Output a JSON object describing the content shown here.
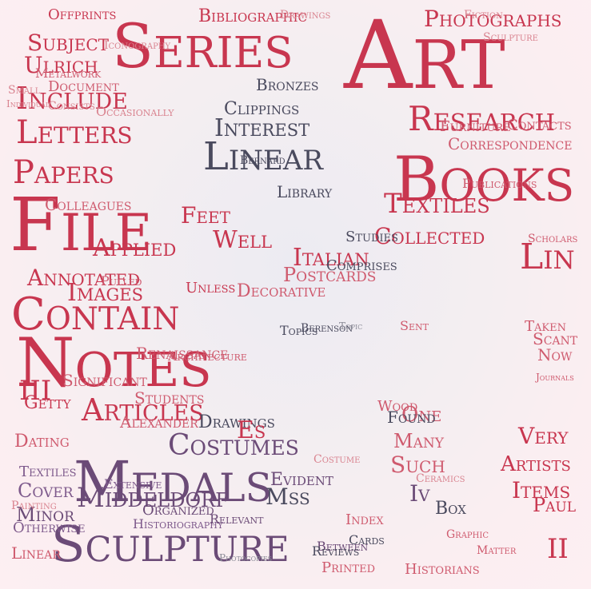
{
  "palette": {
    "red": "#c8364f",
    "rose": "#cf5a6e",
    "pink": "#d9838f",
    "plum": "#6b4b77",
    "purple": "#7e5a8c",
    "slate": "#4a4a5e",
    "grey": "#8b8b97"
  },
  "words": [
    {
      "text": "Art",
      "style": "red"
    },
    {
      "text": "Series",
      "style": "red"
    },
    {
      "text": "File",
      "style": "red"
    },
    {
      "text": "Notes",
      "style": "red"
    },
    {
      "text": "Medals",
      "style": "plum"
    },
    {
      "text": "Sculpture",
      "style": "plum"
    },
    {
      "text": "Books",
      "style": "red"
    },
    {
      "text": "Linear",
      "style": "slate"
    },
    {
      "text": "Contain",
      "style": "red"
    },
    {
      "text": "Research",
      "style": "red"
    },
    {
      "text": "Papers",
      "style": "red"
    },
    {
      "text": "Letters",
      "style": "red"
    },
    {
      "text": "Include",
      "style": "red"
    },
    {
      "text": "Textiles",
      "style": "red"
    },
    {
      "text": "Photographs",
      "style": "red"
    },
    {
      "text": "Bibliographic",
      "style": "red"
    },
    {
      "text": "Articles",
      "style": "red"
    },
    {
      "text": "Costumes",
      "style": "plum"
    },
    {
      "text": "Middeldorf",
      "style": "plum"
    },
    {
      "text": "Images",
      "style": "red"
    },
    {
      "text": "Annotated",
      "style": "red"
    },
    {
      "text": "Applied",
      "style": "red"
    },
    {
      "text": "Lin",
      "style": "red"
    },
    {
      "text": "Interest",
      "style": "slate"
    },
    {
      "text": "Italian",
      "style": "red"
    },
    {
      "text": "Collected",
      "style": "red"
    },
    {
      "text": "Well",
      "style": "red"
    },
    {
      "text": "Feet",
      "style": "red"
    },
    {
      "text": "Decorative",
      "style": "rose"
    },
    {
      "text": "Postcards",
      "style": "rose"
    },
    {
      "text": "Correspondence",
      "style": "rose"
    },
    {
      "text": "Offprints",
      "style": "red"
    },
    {
      "text": "Subject",
      "style": "red"
    },
    {
      "text": "Ulrich",
      "style": "red"
    },
    {
      "text": "Document",
      "style": "rose"
    },
    {
      "text": "Metalwork",
      "style": "rose"
    },
    {
      "text": "Colleagues",
      "style": "rose"
    },
    {
      "text": "Clippings",
      "style": "slate"
    },
    {
      "text": "Bronzes",
      "style": "slate"
    },
    {
      "text": "Library",
      "style": "slate"
    },
    {
      "text": "Drawings",
      "style": "slate"
    },
    {
      "text": "Renaissance",
      "style": "rose"
    },
    {
      "text": "Dating",
      "style": "rose"
    },
    {
      "text": "Artists",
      "style": "red"
    },
    {
      "text": "Items",
      "style": "red"
    },
    {
      "text": "Very",
      "style": "red"
    },
    {
      "text": "Mss",
      "style": "slate"
    },
    {
      "text": "Many",
      "style": "rose"
    },
    {
      "text": "Such",
      "style": "rose"
    },
    {
      "text": "One",
      "style": "rose"
    },
    {
      "text": "Es",
      "style": "red"
    },
    {
      "text": "Iv",
      "style": "plum"
    },
    {
      "text": "II",
      "style": "red"
    },
    {
      "text": "III",
      "style": "red"
    },
    {
      "text": "Box",
      "style": "slate"
    },
    {
      "text": "Minor",
      "style": "plum"
    },
    {
      "text": "Linear",
      "style": "rose"
    },
    {
      "text": "Paul",
      "style": "red"
    },
    {
      "text": "Getty",
      "style": "red"
    },
    {
      "text": "Significant",
      "style": "rose"
    },
    {
      "text": "Students",
      "style": "rose"
    },
    {
      "text": "Alexander",
      "style": "rose"
    },
    {
      "text": "Cover",
      "style": "purple"
    },
    {
      "text": "Textiles",
      "style": "purple"
    },
    {
      "text": "Otherwise",
      "style": "purple"
    },
    {
      "text": "Extensive",
      "style": "purple"
    },
    {
      "text": "Historiography",
      "style": "purple"
    },
    {
      "text": "Organized",
      "style": "plum"
    },
    {
      "text": "Relevant",
      "style": "plum"
    },
    {
      "text": "Evident",
      "style": "plum"
    },
    {
      "text": "Between",
      "style": "plum"
    },
    {
      "text": "Printed",
      "style": "rose"
    },
    {
      "text": "Reviews",
      "style": "slate"
    },
    {
      "text": "Historians",
      "style": "rose"
    },
    {
      "text": "Cards",
      "style": "slate"
    },
    {
      "text": "Index",
      "style": "rose"
    },
    {
      "text": "Graphic",
      "style": "rose"
    },
    {
      "text": "Publications",
      "style": "rose"
    },
    {
      "text": "Furniture",
      "style": "rose"
    },
    {
      "text": "Contacts",
      "style": "rose"
    },
    {
      "text": "Scholars",
      "style": "rose"
    },
    {
      "text": "Journals",
      "style": "rose"
    },
    {
      "text": "Found",
      "style": "slate"
    },
    {
      "text": "Wood",
      "style": "rose"
    },
    {
      "text": "Taken",
      "style": "rose"
    },
    {
      "text": "Scant",
      "style": "rose"
    },
    {
      "text": "Now",
      "style": "rose"
    },
    {
      "text": "Matter",
      "style": "rose"
    },
    {
      "text": "Sent",
      "style": "rose"
    },
    {
      "text": "Fiction",
      "style": "pink"
    },
    {
      "text": "Small",
      "style": "pink"
    },
    {
      "text": "Ceramics",
      "style": "pink"
    },
    {
      "text": "Topics",
      "style": "slate"
    },
    {
      "text": "Bernard",
      "style": "slate"
    },
    {
      "text": "Berenson",
      "style": "slate"
    },
    {
      "text": "Photocopies",
      "style": "grey"
    },
    {
      "text": "Iconography",
      "style": "pink"
    },
    {
      "text": "Drawings",
      "style": "pink"
    },
    {
      "text": "Costume",
      "style": "pink"
    },
    {
      "text": "Unless",
      "style": "red"
    },
    {
      "text": "Comprises",
      "style": "slate"
    },
    {
      "text": "Studies",
      "style": "slate"
    },
    {
      "text": "Pulled",
      "style": "rose"
    },
    {
      "text": "Consists",
      "style": "pink"
    },
    {
      "text": "Occasionally",
      "style": "pink"
    },
    {
      "text": "Individual",
      "style": "pink"
    },
    {
      "text": "Painting",
      "style": "pink"
    },
    {
      "text": "Architecture",
      "style": "rose"
    },
    {
      "text": "Sculpture",
      "style": "pink"
    },
    {
      "text": "Topic",
      "style": "grey"
    }
  ]
}
